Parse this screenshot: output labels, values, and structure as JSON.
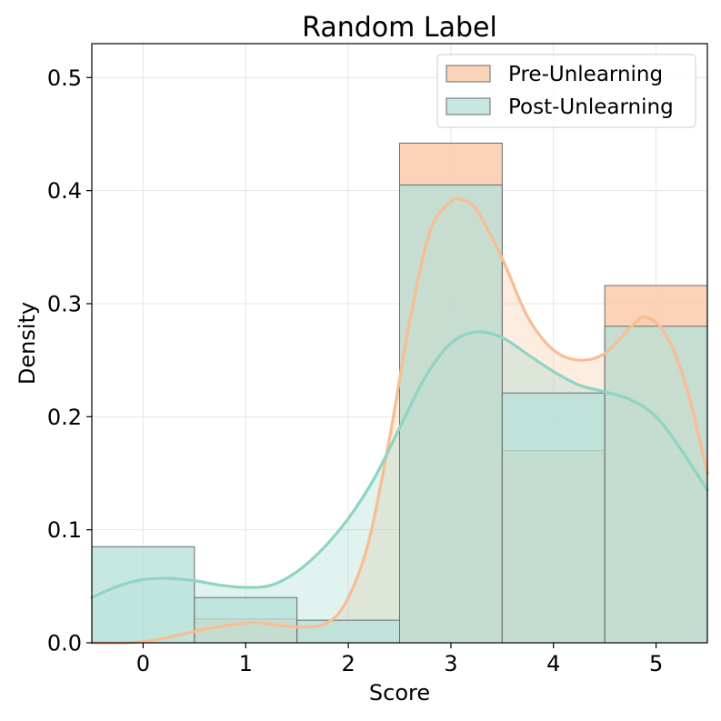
{
  "chart_data": {
    "type": "bar",
    "title": "Random Label",
    "xlabel": "Score",
    "ylabel": "Density",
    "categories": [
      "0",
      "1",
      "2",
      "3",
      "4",
      "5"
    ],
    "x_ticks": [
      0,
      1,
      2,
      3,
      4,
      5
    ],
    "y_ticks": [
      0.0,
      0.1,
      0.2,
      0.3,
      0.4,
      0.5
    ],
    "y_tick_labels": [
      "0.0",
      "0.1",
      "0.2",
      "0.3",
      "0.4",
      "0.5"
    ],
    "xlim": [
      -0.5,
      5.5
    ],
    "ylim": [
      0,
      0.53
    ],
    "grid": true,
    "legend_position": "top-right",
    "series": [
      {
        "name": "Pre-Unlearning",
        "color": "#f9c6a5",
        "line_color": "#f8bd92",
        "values": [
          0.0,
          0.021,
          0.0,
          0.442,
          0.17,
          0.316
        ],
        "kde": {
          "x": [
            -0.5,
            -0.2,
            0.0,
            0.2,
            0.5,
            0.8,
            1.1,
            1.5,
            1.8,
            2.0,
            2.2,
            2.4,
            2.6,
            2.8,
            3.0,
            3.1,
            3.25,
            3.5,
            3.75,
            4.0,
            4.25,
            4.5,
            4.75,
            4.9,
            5.1,
            5.3,
            5.5
          ],
          "y": [
            0.0,
            0.0,
            0.001,
            0.004,
            0.01,
            0.015,
            0.018,
            0.014,
            0.018,
            0.04,
            0.09,
            0.18,
            0.285,
            0.365,
            0.39,
            0.392,
            0.383,
            0.34,
            0.288,
            0.259,
            0.25,
            0.256,
            0.279,
            0.288,
            0.272,
            0.225,
            0.15
          ]
        }
      },
      {
        "name": "Post-Unlearning",
        "color": "#b7e0d9",
        "line_color": "#8fd4c4",
        "values": [
          0.085,
          0.04,
          0.02,
          0.405,
          0.221,
          0.28
        ],
        "kde": {
          "x": [
            -0.5,
            -0.25,
            0.0,
            0.25,
            0.5,
            0.75,
            1.0,
            1.25,
            1.5,
            1.75,
            2.0,
            2.25,
            2.5,
            2.75,
            3.0,
            3.25,
            3.5,
            3.75,
            4.0,
            4.25,
            4.5,
            4.75,
            5.0,
            5.25,
            5.5
          ],
          "y": [
            0.04,
            0.05,
            0.056,
            0.057,
            0.055,
            0.051,
            0.049,
            0.051,
            0.063,
            0.083,
            0.11,
            0.145,
            0.19,
            0.235,
            0.265,
            0.275,
            0.27,
            0.255,
            0.24,
            0.228,
            0.222,
            0.215,
            0.2,
            0.17,
            0.135
          ]
        }
      }
    ]
  }
}
